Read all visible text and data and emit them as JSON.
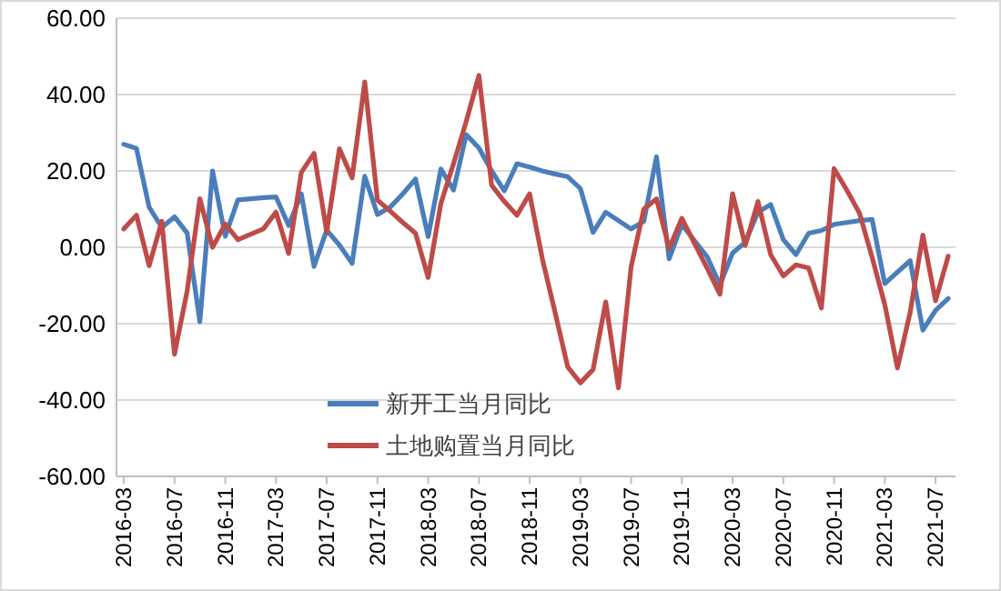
{
  "chart_data": {
    "type": "line",
    "categories": [
      "2016-03",
      null,
      null,
      null,
      "2016-07",
      null,
      null,
      null,
      "2016-11",
      null,
      null,
      null,
      "2017-03",
      null,
      null,
      null,
      "2017-07",
      null,
      null,
      null,
      "2017-11",
      null,
      null,
      null,
      "2018-03",
      null,
      null,
      null,
      "2018-07",
      null,
      null,
      null,
      "2018-11",
      null,
      null,
      null,
      "2019-03",
      null,
      null,
      null,
      "2019-07",
      null,
      null,
      null,
      "2019-11",
      null,
      null,
      null,
      "2020-03",
      null,
      null,
      null,
      "2020-07",
      null,
      null,
      null,
      "2020-11",
      null,
      null,
      null,
      "2021-03",
      null,
      null,
      null,
      "2021-07",
      null
    ],
    "series": [
      {
        "name": "新开工当月同比",
        "color": "#4a7ebb",
        "values": [
          27,
          25.9,
          10.5,
          5.2,
          8,
          3.7,
          -19.5,
          20,
          2.9,
          12.4,
          12.7,
          13,
          13.2,
          5.7,
          14,
          -5,
          4.5,
          0.6,
          -4.2,
          18.6,
          8.6,
          10.5,
          14,
          17.9,
          2.8,
          20.5,
          15,
          29.5,
          26,
          20,
          14.8,
          21.9,
          21,
          20,
          19.2,
          18.5,
          15.4,
          3.9,
          9.2,
          7,
          4.8,
          6.8,
          23.7,
          -3,
          6,
          1.7,
          -2.5,
          -9.8,
          -1.5,
          1.3,
          9.2,
          11.2,
          2,
          -1.9,
          3.7,
          4.4,
          6,
          6.5,
          7,
          7.3,
          -9.5,
          -6.5,
          -3.5,
          -21.7,
          -16.5,
          -13.4
        ]
      },
      {
        "name": "土地购置当月同比",
        "color": "#be4b48",
        "values": [
          4.8,
          8.4,
          -4.8,
          6.8,
          -28,
          -11.4,
          12.7,
          0,
          6.1,
          2,
          3.4,
          4.8,
          9.2,
          -1.6,
          19.6,
          24.6,
          4,
          25.8,
          18.2,
          43.3,
          12.4,
          9.5,
          6.5,
          3.7,
          -7.9,
          11.5,
          21.9,
          33,
          45,
          16.3,
          12,
          8.4,
          14,
          -3,
          -17,
          -31.3,
          -35.5,
          -32,
          -14.3,
          -36.8,
          -5.1,
          10,
          12.7,
          -0.3,
          7.6,
          1,
          -5.5,
          -12.3,
          14,
          0.5,
          12,
          -1.9,
          -7.5,
          -4.6,
          -5.4,
          -15.9,
          20.6,
          15,
          9,
          -2.6,
          -15,
          -31.6,
          -17,
          3.2,
          -14,
          -2.3
        ]
      }
    ],
    "ylim": [
      -60,
      60
    ],
    "yticks": [
      {
        "value": -60,
        "label": "-60.00"
      },
      {
        "value": -40,
        "label": "-40.00"
      },
      {
        "value": -20,
        "label": "-20.00"
      },
      {
        "value": 0,
        "label": "0.00"
      },
      {
        "value": 20,
        "label": "20.00"
      },
      {
        "value": 40,
        "label": "40.00"
      },
      {
        "value": 60,
        "label": "60.00"
      }
    ],
    "grid": "y",
    "legend": "bottom",
    "marker": "none",
    "line_style": "solid"
  }
}
